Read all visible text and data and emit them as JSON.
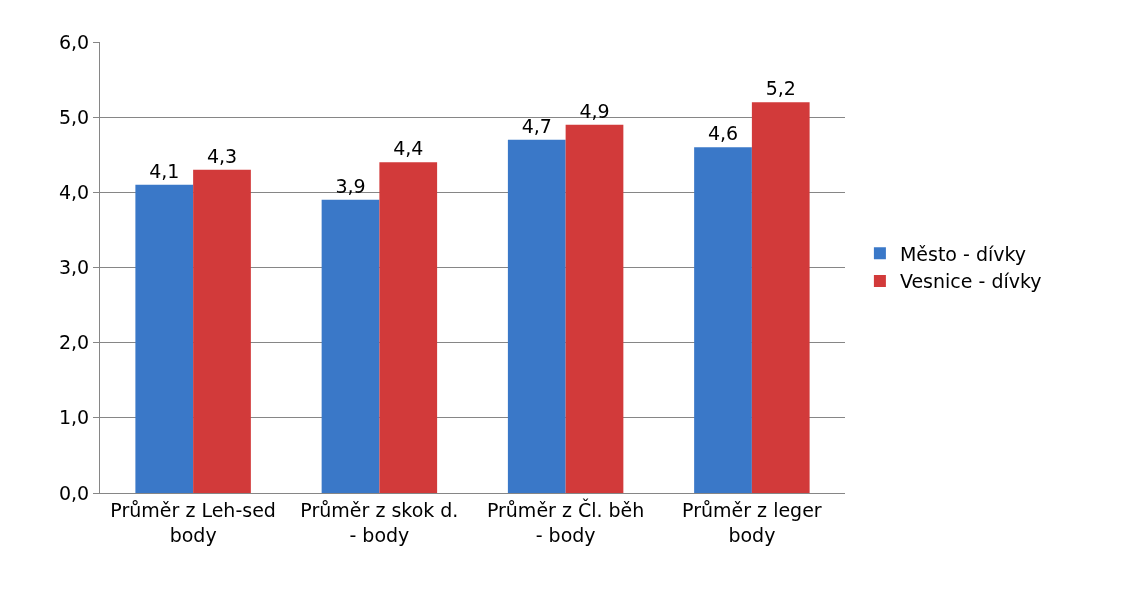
{
  "chart_data": {
    "type": "bar",
    "categories": [
      "Průměr z Leh-sed body",
      "Průměr z skok d. - body",
      "Průměr z Čl. běh - body",
      "Průměr z leger body"
    ],
    "series": [
      {
        "name": "Město - dívky",
        "color": "#3a78c8",
        "values": [
          4.1,
          3.9,
          4.7,
          4.6
        ],
        "value_labels": [
          "4,1",
          "3,9",
          "4,7",
          "4,6"
        ]
      },
      {
        "name": "Vesnice - dívky",
        "color": "#d23a3a",
        "values": [
          4.3,
          4.4,
          4.9,
          5.2
        ],
        "value_labels": [
          "4,3",
          "4,4",
          "4,9",
          "5,2"
        ]
      }
    ],
    "ylim": [
      0,
      6
    ],
    "yticks": [
      {
        "value": 0,
        "label": "0,0"
      },
      {
        "value": 1,
        "label": "1,0"
      },
      {
        "value": 2,
        "label": "2,0"
      },
      {
        "value": 3,
        "label": "3,0"
      },
      {
        "value": 4,
        "label": "4,0"
      },
      {
        "value": 5,
        "label": "5,0"
      },
      {
        "value": 6,
        "label": "6,0"
      }
    ],
    "grid": "y",
    "legend": "right"
  }
}
